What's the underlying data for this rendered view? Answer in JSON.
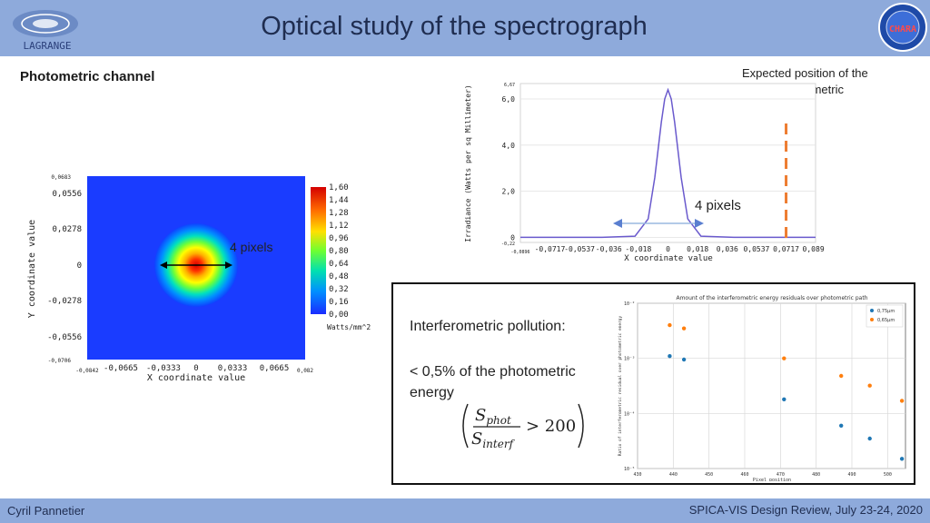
{
  "slide": {
    "title": "Optical study of the spectrograph",
    "section_title": "Photometric channel",
    "annotation_note": "Expected position of the closest photometric beam",
    "logo_left_text": "LAGRANGE",
    "logo_right_text": "CHARA",
    "heatmap_label": "4 pixels",
    "profile_label": "4 pixels",
    "pollution_title": "Interferometric pollution:",
    "pollution_text": "< 0,5% of the photometric energy",
    "formula": {
      "numerator": "S",
      "numerator_sub": "phot",
      "denominator": "S",
      "denominator_sub": "interf",
      "relation": "> 200"
    },
    "footer_left": "Cyril Pannetier",
    "footer_right": "SPICA-VIS Design Review, July 23-24, 2020"
  },
  "chart_data": [
    {
      "type": "heatmap",
      "xlabel": "X coordinate value",
      "ylabel": "Y coordinate value",
      "x_ticks": [
        "-0,0842",
        "-0,0665",
        "-0,0333",
        "0",
        "0,0333",
        "0,0665",
        "0,082"
      ],
      "y_ticks": [
        "0,0683",
        "0,0556",
        "0,0278",
        "0",
        "-0,0278",
        "-0,0556",
        "-0,0706"
      ],
      "colorbar_ticks": [
        "1,60",
        "1,44",
        "1,28",
        "1,12",
        "0,96",
        "0,80",
        "0,64",
        "0,48",
        "0,32",
        "0,16",
        "0,00"
      ],
      "colorbar_unit": "Watts/mm^2",
      "peak_value": 1.6,
      "spot_center": [
        0,
        0
      ]
    },
    {
      "type": "line",
      "xlabel": "X coordinate value",
      "ylabel": "Irradiance (Watts per sq Millimeter)",
      "x_ticks": [
        "-0,0896",
        "-0,0717",
        "-0,0537",
        "-0,036",
        "-0,018",
        "0",
        "0,018",
        "0,036",
        "0,0537",
        "0,0717",
        "0,0896"
      ],
      "y_ticks": [
        "6,67",
        "6,0",
        "4,0",
        "2,0",
        "0",
        "-0,22"
      ],
      "xlim": [
        -0.0896,
        0.0896
      ],
      "ylim": [
        -0.22,
        6.67
      ],
      "series": [
        {
          "x": [
            -0.0896,
            -0.04,
            -0.02,
            -0.012,
            -0.008,
            -0.004,
            -0.002,
            0,
            0.002,
            0.004,
            0.008,
            0.012,
            0.02,
            0.04,
            0.0896
          ],
          "values": [
            0,
            0,
            0.05,
            0.8,
            2.6,
            5.0,
            6.0,
            6.4,
            6.0,
            5.0,
            2.6,
            0.8,
            0.05,
            0,
            0
          ]
        }
      ],
      "marker_x": 0.0717,
      "marker_color": "#ed7d31"
    },
    {
      "type": "scatter",
      "title": "Amount of the interferometric energy residuals over photometric path",
      "xlabel": "Pixel position",
      "ylabel": "Ratio of interferometric residual over photometric energy",
      "x_ticks": [
        "430",
        "440",
        "450",
        "460",
        "470",
        "480",
        "490",
        "500"
      ],
      "y_ticks": [
        "10⁻²",
        "10⁻³",
        "10⁻⁴",
        "10⁻⁵"
      ],
      "xlim": [
        430,
        505
      ],
      "ylim": [
        1e-05,
        0.01
      ],
      "scale_y": "log",
      "series": [
        {
          "name": "0,75µm",
          "color": "#1f77b4",
          "x": [
            439,
            443,
            471,
            487,
            495,
            504
          ],
          "values": [
            0.0011,
            0.00095,
            0.00018,
            6e-05,
            3.5e-05,
            1.5e-05
          ]
        },
        {
          "name": "0,65µm",
          "color": "#ff7f0e",
          "x": [
            439,
            443,
            471,
            487,
            495,
            504
          ],
          "values": [
            0.004,
            0.0035,
            0.001,
            0.00048,
            0.00032,
            0.00017
          ]
        }
      ],
      "legend": "top-right",
      "grid": true
    }
  ]
}
